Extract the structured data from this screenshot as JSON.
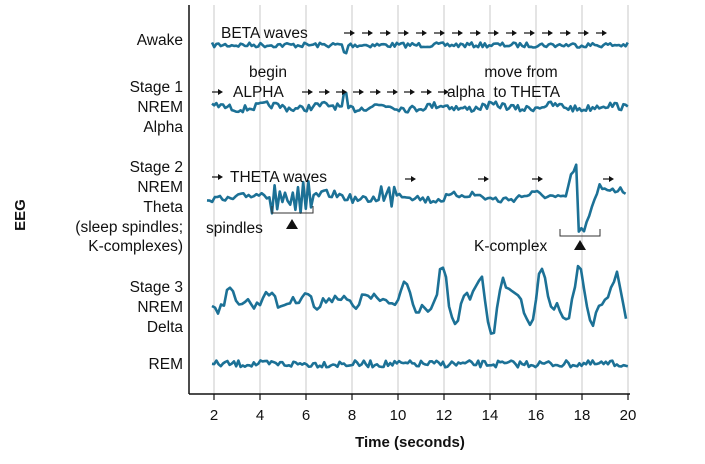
{
  "y_axis_label": "EEG",
  "x_axis_label": "Time (seconds)",
  "x_ticks": [
    "2",
    "4",
    "6",
    "8",
    "10",
    "12",
    "14",
    "16",
    "18",
    "20"
  ],
  "trace_color": "#1c7196",
  "rows": [
    {
      "lines": [
        "Awake"
      ]
    },
    {
      "lines": [
        "Stage 1",
        "NREM",
        "Alpha"
      ]
    },
    {
      "lines": [
        "Stage 2",
        "NREM",
        "Theta",
        "(sleep spindles;",
        "K-complexes)"
      ]
    },
    {
      "lines": [
        "Stage 3",
        "NREM",
        "Delta"
      ]
    },
    {
      "lines": [
        "REM"
      ]
    }
  ],
  "annotations": {
    "beta": "BETA waves",
    "begin": "begin",
    "alpha": "ALPHA",
    "move_from": "move from",
    "alpha_to_theta": "alpha  to THETA",
    "theta": "THETA waves",
    "spindles": "spindles",
    "k_complex": "K-complex"
  }
}
